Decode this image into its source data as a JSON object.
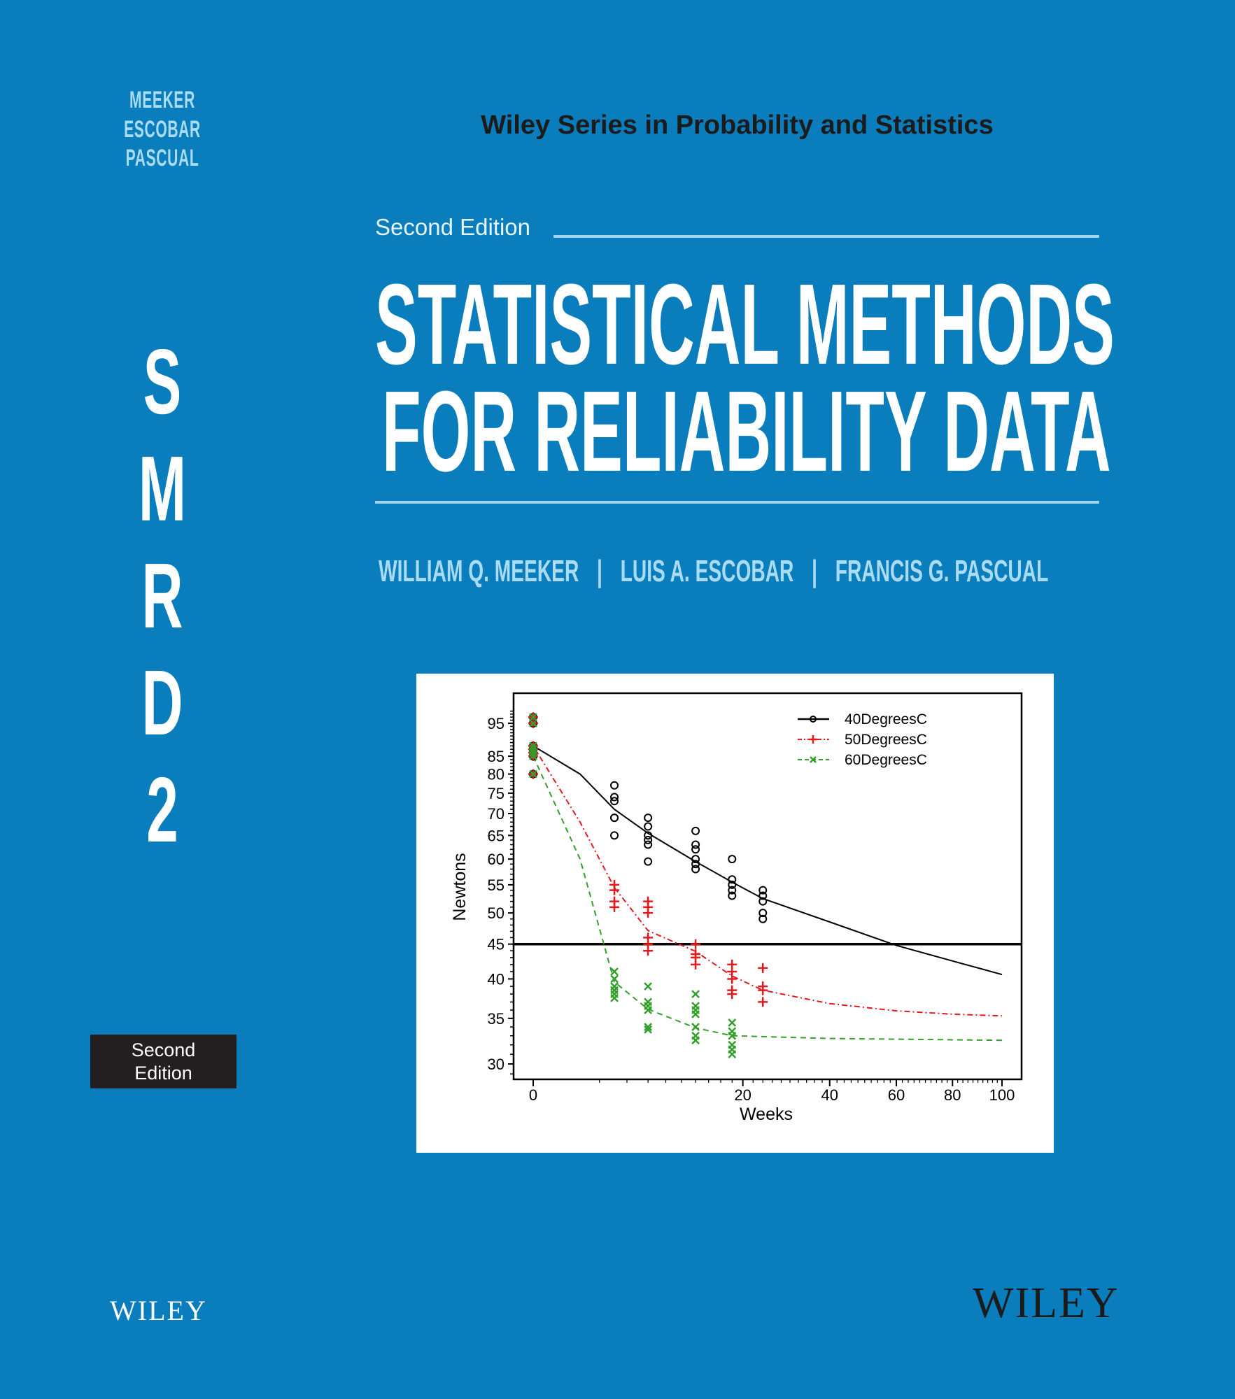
{
  "spine": {
    "authors": [
      "MEEKER",
      "ESCOBAR",
      "PASCUAL"
    ],
    "letters": [
      "S",
      "M",
      "R",
      "D",
      "2"
    ],
    "edition_badge": [
      "Second",
      "Edition"
    ],
    "publisher": "WILEY"
  },
  "cover": {
    "series": "Wiley Series in Probability and Statistics",
    "edition": "Second Edition",
    "title_lines": [
      "STATISTICAL METHODS",
      "FOR RELIABILITY DATA"
    ],
    "authors": [
      "WILLIAM Q. MEEKER",
      "LUIS A. ESCOBAR",
      "FRANCIS G. PASCUAL"
    ],
    "separator": "|",
    "publisher": "WILEY"
  },
  "colors": {
    "background": "#0a7dbd",
    "s40": "#000000",
    "s50": "#e41a1c",
    "s60": "#33a02c"
  },
  "chart_data": {
    "type": "scatter",
    "xlabel": "Weeks",
    "ylabel": "Newtons",
    "x_scale": "sqrt",
    "y_scale": "log",
    "xlim": [
      0,
      100
    ],
    "ylim": [
      28.5,
      100
    ],
    "xticks": [
      0,
      20,
      40,
      60,
      80,
      100
    ],
    "yticks": [
      30,
      35,
      40,
      45,
      50,
      55,
      60,
      65,
      70,
      75,
      80,
      85,
      95
    ],
    "reference_line": 45,
    "legend_position": "top-right",
    "week0": [
      97,
      95,
      88,
      87,
      86,
      85,
      80
    ],
    "series": [
      {
        "name": "40DegreesC",
        "marker": "circle",
        "line": "solid",
        "color": "#000000",
        "points": [
          [
            3,
            [
              77,
              74,
              73,
              69,
              69,
              65
            ]
          ],
          [
            6,
            [
              69,
              67,
              65,
              64,
              63,
              59.5
            ]
          ],
          [
            12,
            [
              66,
              63,
              62,
              60,
              59,
              58
            ]
          ],
          [
            18,
            [
              60,
              56,
              55,
              54,
              53
            ]
          ],
          [
            24,
            [
              54,
              53,
              52,
              50,
              49
            ]
          ]
        ],
        "curve": [
          [
            0,
            88
          ],
          [
            1,
            80
          ],
          [
            3,
            71
          ],
          [
            6,
            65.5
          ],
          [
            12,
            59.5
          ],
          [
            18,
            55.5
          ],
          [
            24,
            52.5
          ],
          [
            40,
            48.5
          ],
          [
            60,
            44.8
          ],
          [
            80,
            42.5
          ],
          [
            100,
            40.6
          ]
        ]
      },
      {
        "name": "50DegreesC",
        "marker": "plus",
        "line": "dashdot",
        "color": "#e41a1c",
        "points": [
          [
            3,
            [
              55,
              54,
              52,
              51
            ]
          ],
          [
            6,
            [
              52,
              51,
              50,
              46,
              45,
              44
            ]
          ],
          [
            12,
            [
              45,
              43.5,
              43,
              42
            ]
          ],
          [
            18,
            [
              42,
              41,
              40,
              38.5,
              38
            ]
          ],
          [
            24,
            [
              41.5,
              39,
              38.5,
              37
            ]
          ]
        ],
        "curve": [
          [
            0,
            88
          ],
          [
            1,
            68
          ],
          [
            3,
            54.5
          ],
          [
            6,
            47.1
          ],
          [
            12,
            43.9
          ],
          [
            18,
            40.4
          ],
          [
            24,
            38.5
          ],
          [
            40,
            36.8
          ],
          [
            60,
            35.9
          ],
          [
            80,
            35.5
          ],
          [
            100,
            35.3
          ]
        ]
      },
      {
        "name": "60DegreesC",
        "marker": "x",
        "line": "dashed",
        "color": "#33a02c",
        "points": [
          [
            3,
            [
              41,
              40,
              39,
              38.5,
              38,
              37.5
            ]
          ],
          [
            6,
            [
              39,
              37,
              36.5,
              36,
              34,
              33.7
            ]
          ],
          [
            12,
            [
              38,
              36.5,
              36,
              35.5,
              34,
              33,
              32.5
            ]
          ],
          [
            18,
            [
              34.5,
              33.5,
              33,
              32,
              31.5,
              31
            ]
          ]
        ],
        "curve": [
          [
            0,
            85
          ],
          [
            1,
            60
          ],
          [
            3,
            39.6
          ],
          [
            6,
            36.1
          ],
          [
            12,
            33.9
          ],
          [
            18,
            33
          ],
          [
            40,
            32.7
          ],
          [
            100,
            32.5
          ]
        ]
      }
    ]
  }
}
